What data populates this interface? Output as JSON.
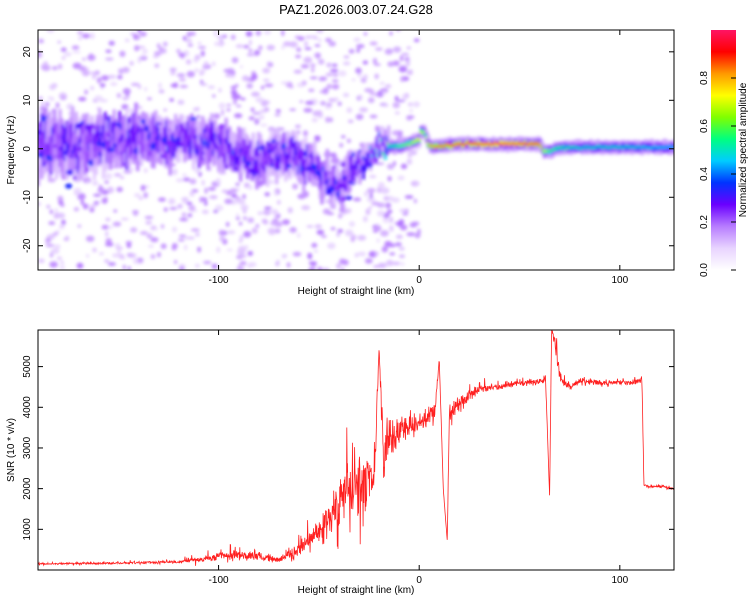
{
  "title": "PAZ1.2026.003.07.24.G28",
  "chart_data": [
    {
      "type": "heatmap",
      "title": "PAZ1.2026.003.07.24.G28",
      "xlabel": "Height of straight line (km)",
      "ylabel": "Frequency (Hz)",
      "xlim": [
        -190,
        127
      ],
      "ylim": [
        -25,
        24.5
      ],
      "x_ticks": [
        -100,
        0,
        100
      ],
      "x_tick_labels": [
        "-100",
        "0",
        "100"
      ],
      "y_ticks": [
        -20,
        -10,
        0,
        10,
        20
      ],
      "y_tick_labels": [
        "-20",
        "-10",
        "0",
        "10",
        "20"
      ],
      "colorbar": {
        "label": "Normalized spectral amplitude",
        "range": [
          0.0,
          1.0
        ],
        "ticks": [
          0.0,
          0.2,
          0.4,
          0.6,
          0.8
        ],
        "tick_labels": [
          "0.0",
          "0.2",
          "0.4",
          "0.6",
          "0.8"
        ],
        "colormap": [
          "#ffffff",
          "#e8d4ff",
          "#b77cff",
          "#6a00ff",
          "#0033ff",
          "#00ccff",
          "#00ff80",
          "#80ff00",
          "#ffff00",
          "#ff9900",
          "#ff0000",
          "#ff1464"
        ]
      },
      "ridge": {
        "x": [
          -190,
          -170,
          -150,
          -140,
          -120,
          -100,
          -90,
          -80,
          -70,
          -60,
          -50,
          -45,
          -40,
          -35,
          -30,
          -25,
          -20,
          -15,
          -10,
          -5,
          0,
          1,
          3,
          5,
          10,
          20,
          40,
          60,
          62,
          65,
          70,
          80,
          100,
          127
        ],
        "freq": [
          1.5,
          0.5,
          2.0,
          2.5,
          1.5,
          1.0,
          -1.5,
          -2.5,
          -1.0,
          -1.5,
          -5.0,
          -7.0,
          -8.5,
          -5.0,
          -3.5,
          -1.5,
          0.5,
          0.5,
          0.5,
          1.0,
          2.0,
          4.0,
          3.0,
          0.5,
          0.5,
          1.0,
          1.0,
          1.0,
          -0.5,
          -0.5,
          0.3,
          0.3,
          0.3,
          0.3
        ],
        "amplitude": [
          0.25,
          0.25,
          0.25,
          0.3,
          0.28,
          0.3,
          0.3,
          0.25,
          0.25,
          0.28,
          0.3,
          0.3,
          0.3,
          0.25,
          0.3,
          0.35,
          0.45,
          0.5,
          0.6,
          0.65,
          0.75,
          0.7,
          0.65,
          0.8,
          0.85,
          0.9,
          0.95,
          0.9,
          0.7,
          0.6,
          0.55,
          0.5,
          0.5,
          0.45
        ],
        "spread": [
          7,
          7,
          6,
          6,
          5,
          5,
          5,
          5,
          5,
          5,
          4,
          4,
          4,
          4,
          3,
          2.5,
          2,
          1.8,
          1.8,
          1.8,
          1.8,
          1.8,
          1.8,
          1.8,
          1.8,
          1.8,
          1.8,
          1.8,
          1.8,
          1.8,
          1.8,
          1.8,
          1.8,
          1.8
        ]
      }
    },
    {
      "type": "line",
      "xlabel": "Height of straight line (km)",
      "ylabel": "SNR (10 * v/v)",
      "xlim": [
        -190,
        127
      ],
      "ylim": [
        0,
        5900
      ],
      "x_ticks": [
        -100,
        0,
        100
      ],
      "x_tick_labels": [
        "-100",
        "0",
        "100"
      ],
      "y_ticks": [
        1000,
        2000,
        3000,
        4000,
        5000
      ],
      "y_tick_labels": [
        "1000",
        "2000",
        "3000",
        "4000",
        "5000"
      ],
      "series": [
        {
          "name": "SNR",
          "color": "#ff2020",
          "x": [
            -190,
            -150,
            -120,
            -105,
            -95,
            -85,
            -80,
            -75,
            -70,
            -60,
            -55,
            -50,
            -45,
            -40,
            -35,
            -30,
            -25,
            -22,
            -20,
            -18,
            -15,
            -12,
            -10,
            -5,
            0,
            5,
            8,
            10,
            12,
            14,
            15,
            20,
            25,
            30,
            40,
            50,
            60,
            63,
            65,
            66,
            68,
            70,
            75,
            80,
            90,
            100,
            105,
            110,
            111,
            112,
            115,
            120,
            127
          ],
          "y": [
            150,
            170,
            200,
            280,
            380,
            350,
            350,
            280,
            250,
            480,
            700,
            900,
            1200,
            1500,
            1800,
            2100,
            2200,
            2500,
            5500,
            2800,
            3000,
            3300,
            3500,
            3500,
            3600,
            3800,
            4000,
            5200,
            2000,
            700,
            3800,
            4100,
            4300,
            4450,
            4500,
            4600,
            4650,
            4700,
            1800,
            5900,
            5600,
            4700,
            4500,
            4650,
            4600,
            4600,
            4600,
            4650,
            4700,
            2100,
            2050,
            2050,
            2000
          ],
          "noise": [
            25,
            30,
            40,
            100,
            180,
            160,
            150,
            100,
            80,
            250,
            350,
            450,
            600,
            700,
            800,
            900,
            900,
            900,
            0,
            900,
            700,
            600,
            400,
            300,
            250,
            250,
            300,
            0,
            0,
            0,
            300,
            250,
            150,
            120,
            100,
            100,
            100,
            120,
            0,
            0,
            400,
            200,
            100,
            100,
            80,
            70,
            70,
            70,
            70,
            40,
            40,
            40,
            40
          ]
        }
      ]
    }
  ]
}
